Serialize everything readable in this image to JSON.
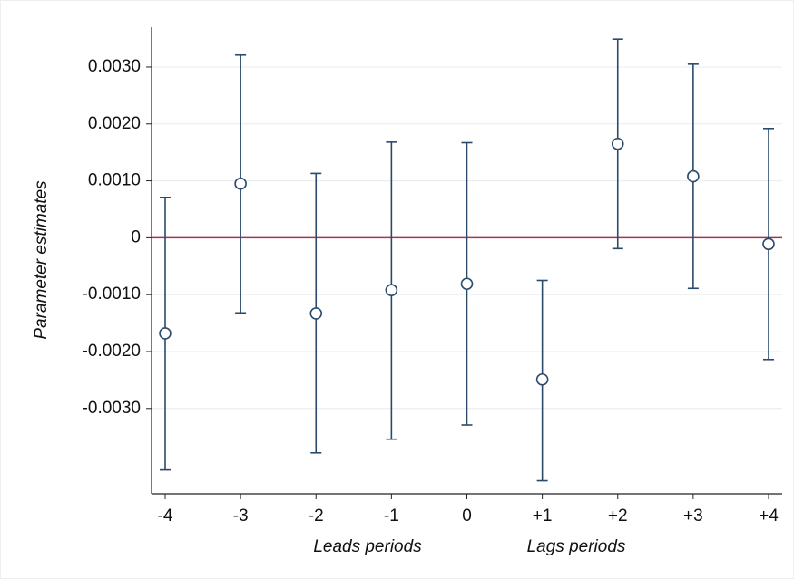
{
  "chart_data": {
    "type": "errorbar",
    "ylabel": "Parameter estimates",
    "xlabels": [
      "Leads periods",
      "Lags periods"
    ],
    "categories": [
      "-4",
      "-3",
      "-2",
      "-1",
      "0",
      "+1",
      "+2",
      "+3",
      "+4"
    ],
    "values": [
      -0.00168,
      0.00095,
      -0.00133,
      -0.00092,
      -0.00081,
      -0.00249,
      0.00165,
      0.00108,
      -0.00011
    ],
    "ci_lower": [
      -0.00408,
      -0.00132,
      -0.00378,
      -0.00354,
      -0.00329,
      -0.00427,
      -0.00019,
      -0.00089,
      -0.00214
    ],
    "ci_upper": [
      0.00071,
      0.00321,
      0.00113,
      0.00168,
      0.00167,
      -0.00075,
      0.00349,
      0.00305,
      0.00192
    ],
    "color": "#2b4a6b",
    "reference_line": {
      "value": 0,
      "color": "#a3354f"
    },
    "ylim": [
      -0.0045,
      0.0037
    ],
    "yticks": [
      {
        "value": -0.003,
        "label": "-0.0030"
      },
      {
        "value": -0.002,
        "label": "-0.0020"
      },
      {
        "value": -0.001,
        "label": "-0.0010"
      },
      0,
      {
        "value": 0.001,
        "label": "0.0010"
      },
      {
        "value": 0.002,
        "label": "0.0020"
      },
      {
        "value": 0.003,
        "label": "0.0030"
      }
    ],
    "grid": true
  }
}
